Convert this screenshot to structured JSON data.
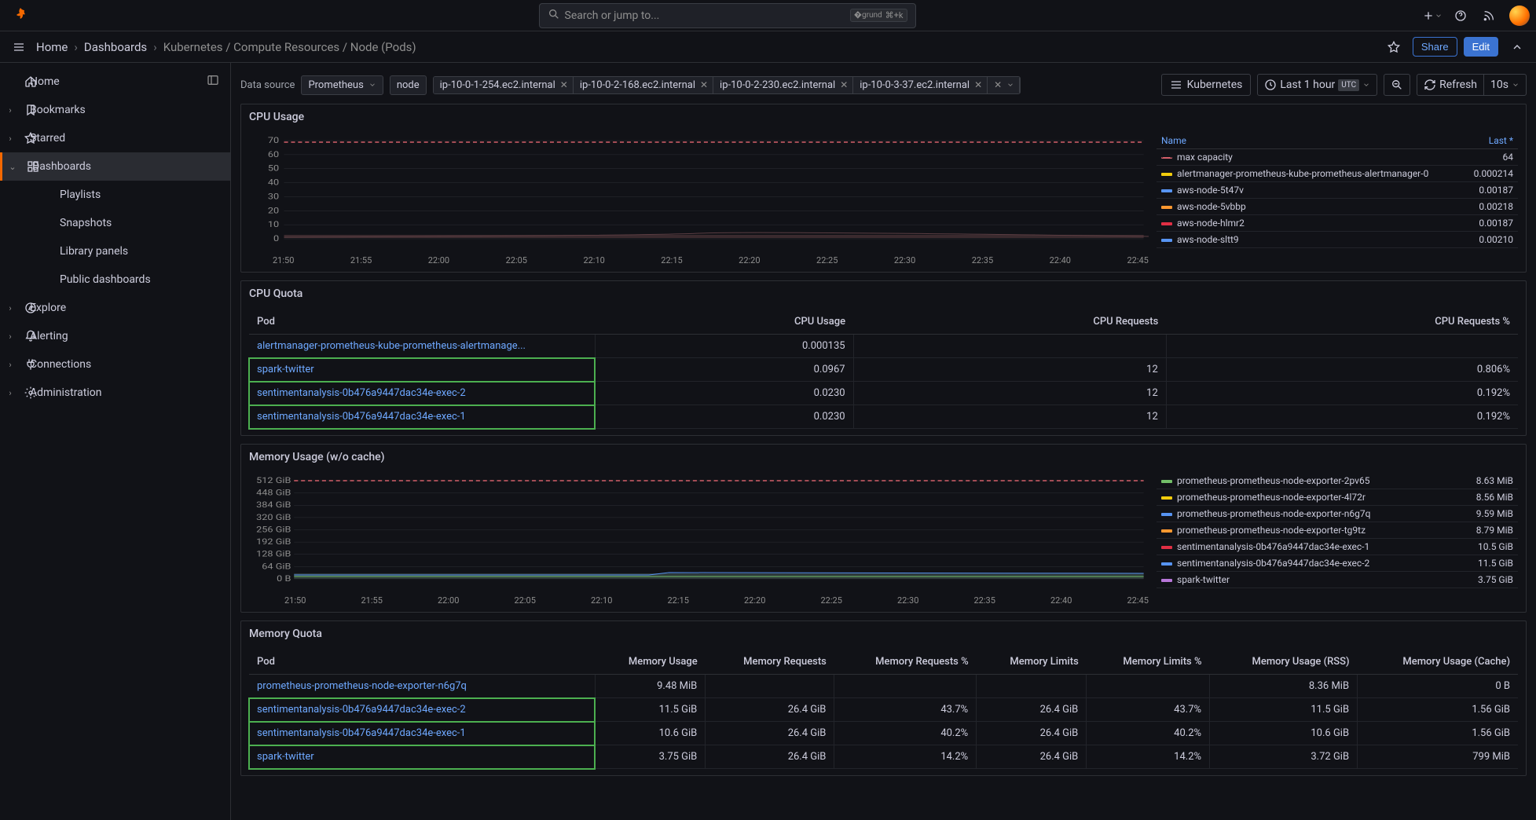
{
  "search": {
    "placeholder": "Search or jump to...",
    "shortcut": "⌘+k"
  },
  "breadcrumb": {
    "home": "Home",
    "dashboards": "Dashboards",
    "current": "Kubernetes / Compute Resources / Node (Pods)"
  },
  "actions": {
    "share": "Share",
    "edit": "Edit"
  },
  "sidebar": {
    "items": [
      {
        "label": "Home",
        "icon": "home",
        "trail": "panel"
      },
      {
        "label": "Bookmarks",
        "icon": "bookmark",
        "expandable": true
      },
      {
        "label": "Starred",
        "icon": "star",
        "expandable": true
      },
      {
        "label": "Dashboards",
        "icon": "grid",
        "expandable": true,
        "active": true,
        "expanded": true,
        "children": [
          {
            "label": "Playlists"
          },
          {
            "label": "Snapshots"
          },
          {
            "label": "Library panels"
          },
          {
            "label": "Public dashboards"
          }
        ]
      },
      {
        "label": "Explore",
        "icon": "compass",
        "expandable": true
      },
      {
        "label": "Alerting",
        "icon": "bell",
        "expandable": true
      },
      {
        "label": "Connections",
        "icon": "plug",
        "expandable": true
      },
      {
        "label": "Administration",
        "icon": "gear",
        "expandable": true
      }
    ]
  },
  "vars": {
    "datasource_label": "Data source",
    "datasource_value": "Prometheus",
    "node_label": "node",
    "nodes": [
      "ip-10-0-1-254.ec2.internal",
      "ip-10-0-2-168.ec2.internal",
      "ip-10-0-2-230.ec2.internal",
      "ip-10-0-3-37.ec2.internal"
    ],
    "link": "Kubernetes",
    "time": "Last 1 hour",
    "tz": "UTC",
    "refresh": "Refresh",
    "interval": "10s"
  },
  "cpu_usage": {
    "title": "CPU Usage",
    "yticks": [
      "70",
      "60",
      "50",
      "40",
      "30",
      "20",
      "10",
      "0"
    ],
    "xticks": [
      "21:50",
      "21:55",
      "22:00",
      "22:05",
      "22:10",
      "22:15",
      "22:20",
      "22:25",
      "22:30",
      "22:35",
      "22:40",
      "22:45"
    ],
    "legend_name": "Name",
    "legend_last": "Last *",
    "series": [
      {
        "color": "#d4606a",
        "dashed": true,
        "name": "max capacity",
        "last": "64"
      },
      {
        "color": "#f2cc0c",
        "name": "alertmanager-prometheus-kube-prometheus-alertmanager-0",
        "last": "0.000214"
      },
      {
        "color": "#5794f2",
        "name": "aws-node-5t47v",
        "last": "0.00187"
      },
      {
        "color": "#ff9830",
        "name": "aws-node-5vbbp",
        "last": "0.00218"
      },
      {
        "color": "#e02f44",
        "name": "aws-node-hlmr2",
        "last": "0.00187"
      },
      {
        "color": "#5794f2",
        "name": "aws-node-sltt9",
        "last": "0.00210"
      }
    ]
  },
  "cpu_quota": {
    "title": "CPU Quota",
    "cols": [
      "Pod",
      "CPU Usage",
      "CPU Requests",
      "CPU Requests %"
    ],
    "rows": [
      {
        "pod": "alertmanager-prometheus-kube-prometheus-alertmanage...",
        "usage": "0.000135",
        "req": "",
        "reqpct": "",
        "hl": false
      },
      {
        "pod": "spark-twitter",
        "usage": "0.0967",
        "req": "12",
        "reqpct": "0.806%",
        "hl": true
      },
      {
        "pod": "sentimentanalysis-0b476a9447dac34e-exec-2",
        "usage": "0.0230",
        "req": "12",
        "reqpct": "0.192%",
        "hl": true
      },
      {
        "pod": "sentimentanalysis-0b476a9447dac34e-exec-1",
        "usage": "0.0230",
        "req": "12",
        "reqpct": "0.192%",
        "hl": true
      }
    ]
  },
  "mem_usage": {
    "title": "Memory Usage (w/o cache)",
    "yticks": [
      "512 GiB",
      "448 GiB",
      "384 GiB",
      "320 GiB",
      "256 GiB",
      "192 GiB",
      "128 GiB",
      "64 GiB",
      "0 B"
    ],
    "xticks": [
      "21:50",
      "21:55",
      "22:00",
      "22:05",
      "22:10",
      "22:15",
      "22:20",
      "22:25",
      "22:30",
      "22:35",
      "22:40",
      "22:45"
    ],
    "series": [
      {
        "color": "#73bf69",
        "name": "prometheus-prometheus-node-exporter-2pv65",
        "last": "8.63 MiB"
      },
      {
        "color": "#f2cc0c",
        "name": "prometheus-prometheus-node-exporter-4l72r",
        "last": "8.56 MiB"
      },
      {
        "color": "#5794f2",
        "name": "prometheus-prometheus-node-exporter-n6g7q",
        "last": "9.59 MiB"
      },
      {
        "color": "#ff9830",
        "name": "prometheus-prometheus-node-exporter-tg9tz",
        "last": "8.79 MiB"
      },
      {
        "color": "#e02f44",
        "name": "sentimentanalysis-0b476a9447dac34e-exec-1",
        "last": "10.5 GiB"
      },
      {
        "color": "#5794f2",
        "name": "sentimentanalysis-0b476a9447dac34e-exec-2",
        "last": "11.5 GiB"
      },
      {
        "color": "#b877d9",
        "name": "spark-twitter",
        "last": "3.75 GiB"
      }
    ]
  },
  "mem_quota": {
    "title": "Memory Quota",
    "cols": [
      "Pod",
      "Memory Usage",
      "Memory Requests",
      "Memory Requests %",
      "Memory Limits",
      "Memory Limits %",
      "Memory Usage (RSS)",
      "Memory Usage (Cache)"
    ],
    "rows": [
      {
        "pod": "prometheus-prometheus-node-exporter-n6g7q",
        "c": [
          "9.48 MiB",
          "",
          "",
          "",
          "",
          "8.36 MiB",
          "0 B"
        ],
        "hl": false
      },
      {
        "pod": "sentimentanalysis-0b476a9447dac34e-exec-2",
        "c": [
          "11.5 GiB",
          "26.4 GiB",
          "43.7%",
          "26.4 GiB",
          "43.7%",
          "11.5 GiB",
          "1.56 GiB"
        ],
        "hl": true
      },
      {
        "pod": "sentimentanalysis-0b476a9447dac34e-exec-1",
        "c": [
          "10.6 GiB",
          "26.4 GiB",
          "40.2%",
          "26.4 GiB",
          "40.2%",
          "10.6 GiB",
          "1.56 GiB"
        ],
        "hl": true
      },
      {
        "pod": "spark-twitter",
        "c": [
          "3.75 GiB",
          "26.4 GiB",
          "14.2%",
          "26.4 GiB",
          "14.2%",
          "3.72 GiB",
          "799 MiB"
        ],
        "hl": true
      }
    ]
  }
}
